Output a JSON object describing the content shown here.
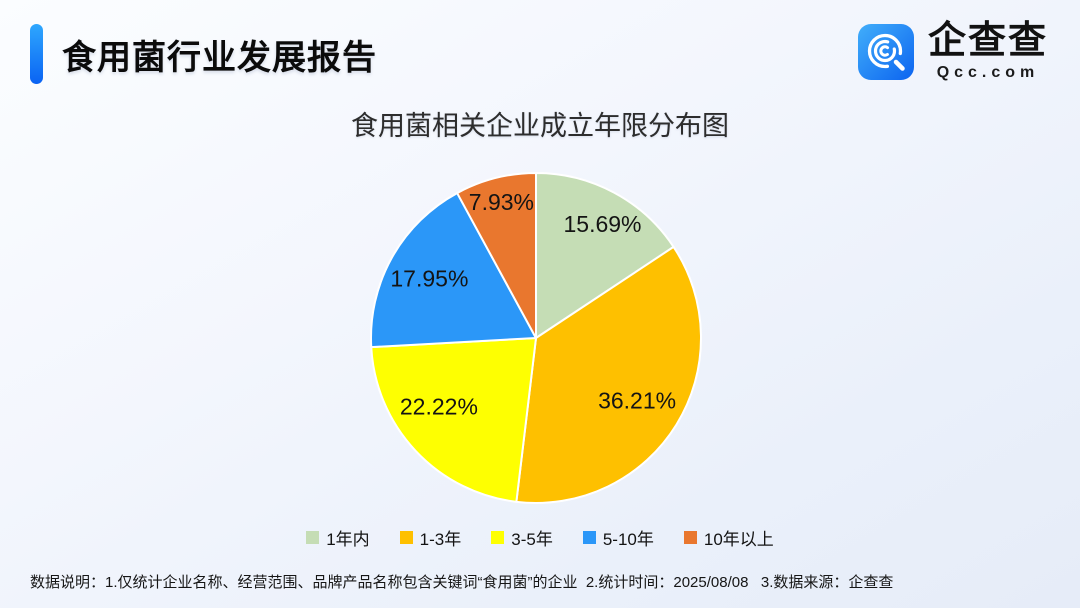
{
  "header": {
    "title": "食用菌行业发展报告",
    "logo": {
      "name": "企查查",
      "domain": "Qcc.com"
    }
  },
  "chart_data": {
    "type": "pie",
    "title": "食用菌相关企业成立年限分布图",
    "categories": [
      "1年内",
      "1-3年",
      "3-5年",
      "5-10年",
      "10年以上"
    ],
    "values": [
      15.69,
      36.21,
      22.22,
      17.95,
      7.93
    ],
    "labels": [
      "15.69%",
      "36.21%",
      "22.22%",
      "17.95%",
      "7.93%"
    ],
    "colors": [
      "#c5ddb5",
      "#fec000",
      "#feff01",
      "#2b97f8",
      "#e9772e"
    ],
    "start_angle_deg": 0,
    "direction": "clockwise",
    "legend_position": "bottom",
    "slice_stroke": "#ffffff"
  },
  "brand": {
    "accent_blue_top": "#2ea7fe",
    "accent_blue_bottom": "#0a63f3"
  },
  "footer": {
    "note": "数据说明：1.仅统计企业名称、经营范围、品牌产品名称包含关键词“食用菌”的企业  2.统计时间：2025/08/08   3.数据来源：企查查"
  }
}
